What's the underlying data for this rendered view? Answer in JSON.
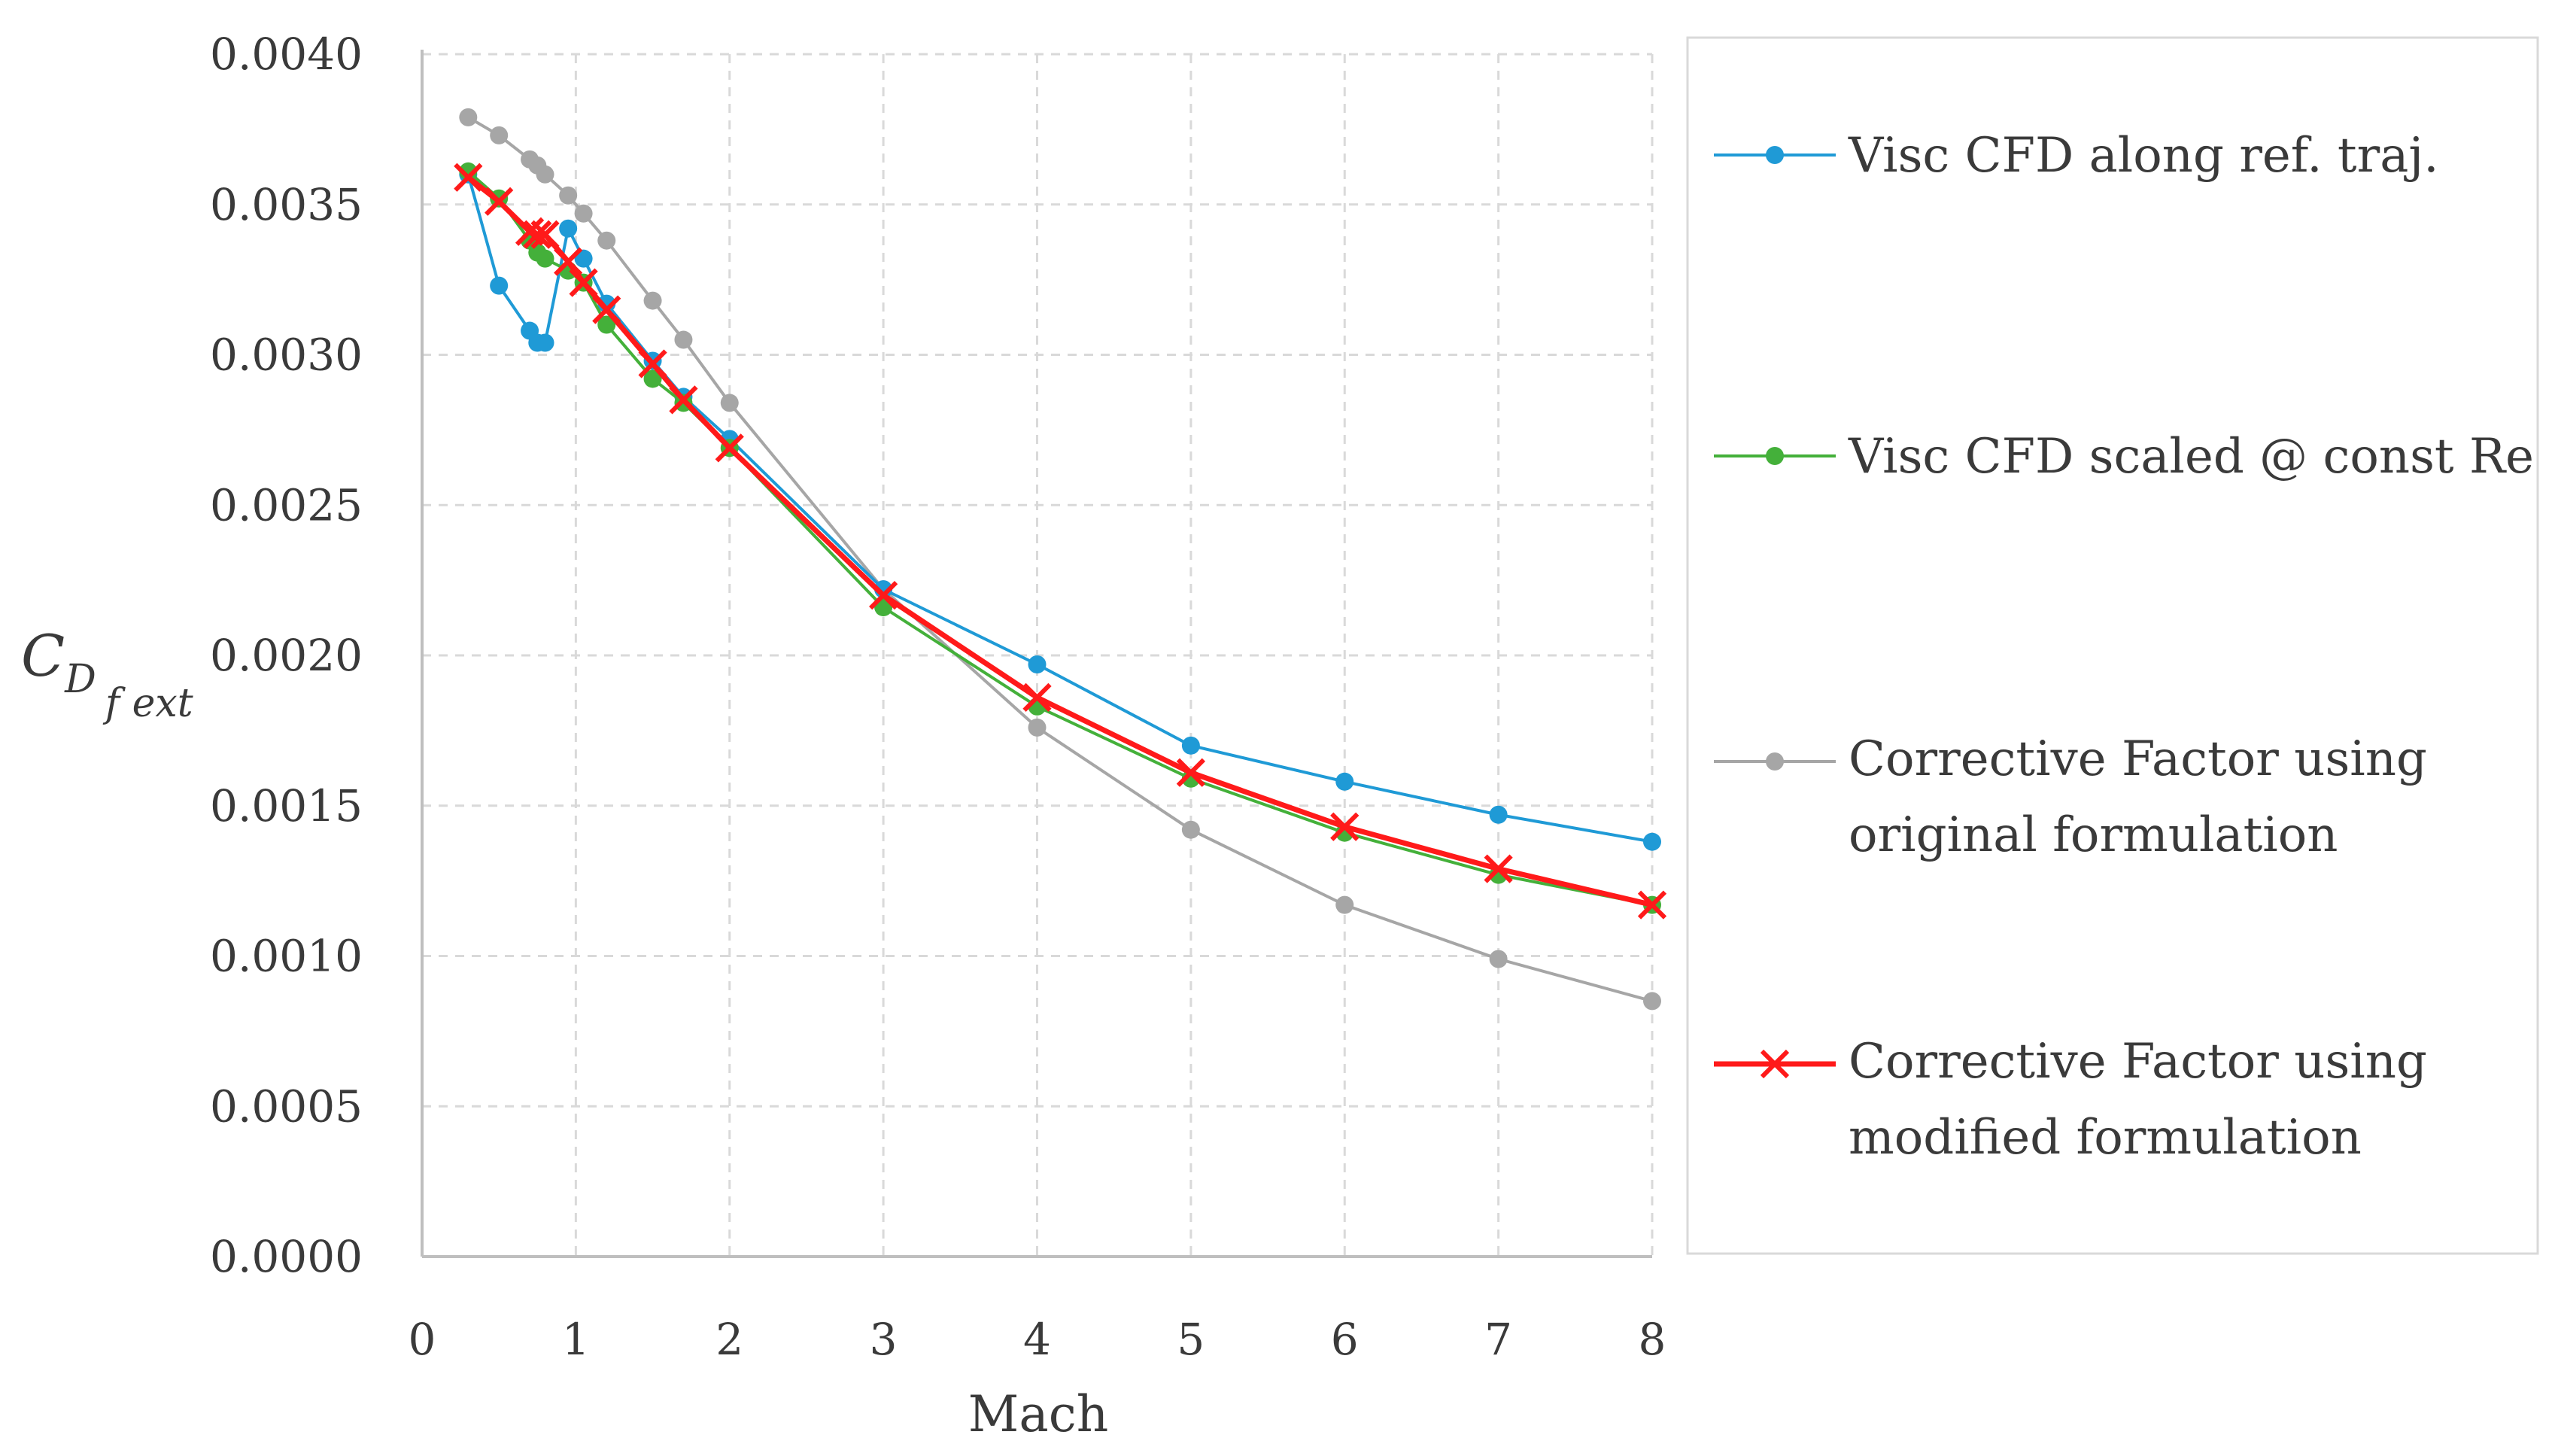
{
  "chart_data": {
    "type": "line",
    "title": "",
    "xlabel": "Mach",
    "ylabel": {
      "main": "C",
      "sub1": "D",
      "sub2": "f ext"
    },
    "xlim": [
      0,
      8
    ],
    "ylim": [
      0,
      0.004
    ],
    "x_ticks": [
      "0",
      "1",
      "2",
      "3",
      "4",
      "5",
      "6",
      "7",
      "8"
    ],
    "y_ticks": [
      "0.0000",
      "0.0005",
      "0.0010",
      "0.0015",
      "0.0020",
      "0.0025",
      "0.0030",
      "0.0035",
      "0.0040"
    ],
    "grid": true,
    "legend_position": "right",
    "series": [
      {
        "name": "Visc CFD along ref. traj.",
        "color": "#1f9ad6",
        "marker": "circle",
        "x": [
          0.3,
          0.5,
          0.7,
          0.75,
          0.8,
          0.95,
          1.05,
          1.2,
          1.5,
          1.7,
          2,
          3,
          4,
          5,
          6,
          7,
          8
        ],
        "y": [
          0.0036,
          0.00323,
          0.00308,
          0.00304,
          0.00304,
          0.00342,
          0.00332,
          0.00317,
          0.00298,
          0.00286,
          0.00272,
          0.00222,
          0.00197,
          0.0017,
          0.00158,
          0.00147,
          0.00138
        ]
      },
      {
        "name": "Visc CFD scaled @ const Re",
        "color": "#44b03a",
        "marker": "circle",
        "x": [
          0.3,
          0.5,
          0.7,
          0.75,
          0.8,
          0.95,
          1.05,
          1.2,
          1.5,
          1.7,
          2,
          3,
          4,
          5,
          6,
          7,
          8
        ],
        "y": [
          0.00361,
          0.00352,
          0.00338,
          0.00334,
          0.00332,
          0.00328,
          0.00324,
          0.0031,
          0.00292,
          0.00284,
          0.00269,
          0.00216,
          0.00183,
          0.00159,
          0.00141,
          0.00127,
          0.00117
        ]
      },
      {
        "name": "Corrective Factor using original formulation",
        "line1": "Corrective Factor using",
        "line2": "original formulation",
        "color": "#a6a6a6",
        "marker": "circle",
        "x": [
          0.3,
          0.5,
          0.7,
          0.75,
          0.8,
          0.95,
          1.05,
          1.2,
          1.5,
          1.7,
          2,
          3,
          4,
          5,
          6,
          7,
          8
        ],
        "y": [
          0.00379,
          0.00373,
          0.00365,
          0.00363,
          0.0036,
          0.00353,
          0.00347,
          0.00338,
          0.00318,
          0.00305,
          0.00284,
          0.00222,
          0.00176,
          0.00142,
          0.00117,
          0.00099,
          0.00085
        ]
      },
      {
        "name": "Corrective Factor using modified formulation",
        "line1": "Corrective Factor using",
        "line2": "modified formulation",
        "color": "#ff1a1a",
        "marker": "x",
        "x": [
          0.3,
          0.5,
          0.7,
          0.75,
          0.8,
          0.95,
          1.05,
          1.2,
          1.5,
          1.7,
          2,
          3,
          4,
          5,
          6,
          7,
          8
        ],
        "y": [
          0.00359,
          0.00351,
          0.00341,
          0.0034,
          0.0034,
          0.00331,
          0.00324,
          0.00315,
          0.00297,
          0.00285,
          0.00269,
          0.0022,
          0.00186,
          0.00161,
          0.00143,
          0.00129,
          0.00117
        ]
      }
    ]
  }
}
